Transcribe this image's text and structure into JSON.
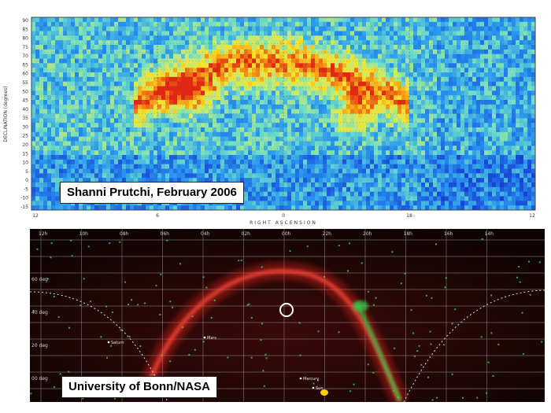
{
  "heatmap": {
    "ylabel": "DECLINATION (degrees)",
    "xlabel": "RIGHT ASCENSION",
    "ytick_labels": [
      "90",
      "85",
      "80",
      "75",
      "70",
      "65",
      "60",
      "55",
      "50",
      "45",
      "40",
      "35",
      "30",
      "25",
      "20",
      "15",
      "10",
      "5",
      "0",
      "-5",
      "-10",
      "-15"
    ],
    "xtick_labels": [
      "12",
      "6",
      "0",
      "18",
      "12"
    ],
    "credit": "Shanni Prutchi, February 2006"
  },
  "sky_map": {
    "ra_labels": [
      "12h",
      "10h",
      "08h",
      "06h",
      "04h",
      "02h",
      "00h",
      "22h",
      "20h",
      "18h",
      "16h",
      "14h"
    ],
    "dec_labels": [
      "60 deg",
      "40 deg",
      "20 deg",
      "00 deg"
    ],
    "object_labels": [
      "Saturn",
      "Mars",
      "Mercury",
      "Sun"
    ],
    "credit": "University of Bonn/NASA"
  },
  "colors": {
    "heat_low": "#1a3fd6",
    "heat_mid": "#7fe0c0",
    "heat_high": "#f04010",
    "sky_bg": "#140404",
    "galactic_plane": "#ff3030",
    "grid": "#9a9a9a"
  }
}
